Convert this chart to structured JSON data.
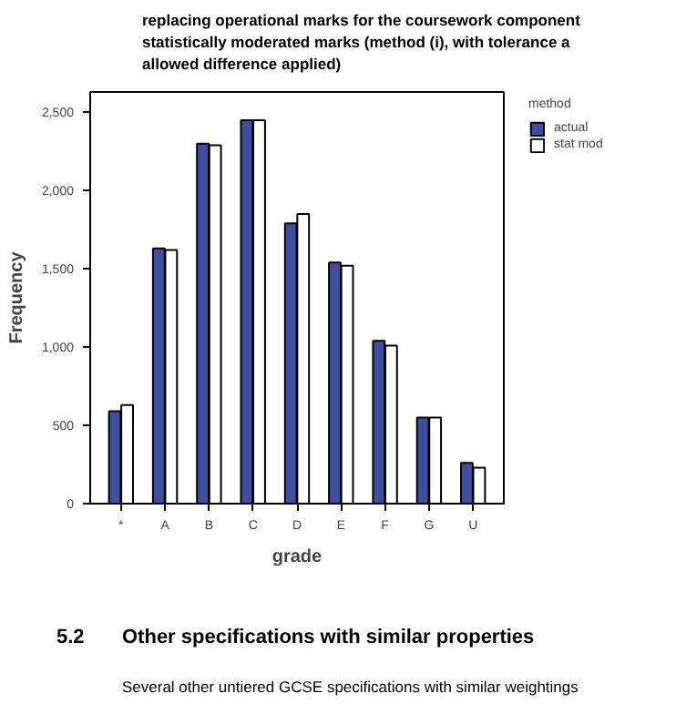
{
  "chart_data": {
    "type": "bar",
    "title": "replacing operational marks for the coursework component\nstatistically moderated marks (method (i), with tolerance a\nallowed difference applied)",
    "xlabel": "grade",
    "ylabel": "Frequency",
    "legend_title": "method",
    "categories": [
      "*",
      "A",
      "B",
      "C",
      "D",
      "E",
      "F",
      "G",
      "U"
    ],
    "series": [
      {
        "name": "actual",
        "color": "#3c4fa0",
        "values": [
          590,
          1630,
          2300,
          2450,
          1790,
          1540,
          1040,
          550,
          260
        ]
      },
      {
        "name": "stat mod",
        "color": "#ffffff",
        "values": [
          630,
          1620,
          2290,
          2450,
          1850,
          1520,
          1010,
          550,
          230
        ]
      }
    ],
    "ylim": [
      0,
      2630
    ],
    "yticks": [
      {
        "value": 0,
        "label": "0"
      },
      {
        "value": 500,
        "label": "500"
      },
      {
        "value": 1000,
        "label": "1,000"
      },
      {
        "value": 1500,
        "label": "1,500"
      },
      {
        "value": 2000,
        "label": "2,000"
      },
      {
        "value": 2500,
        "label": "2,500"
      }
    ],
    "grid": false,
    "legend": "top right",
    "annotations": [
      "5.2",
      "Other specifications with similar properties",
      "Several other untiered GCSE specifications with similar weightings"
    ]
  }
}
